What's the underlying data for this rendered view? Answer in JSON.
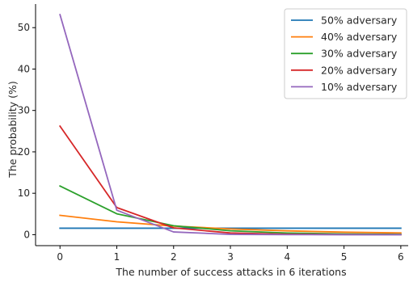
{
  "chart_data": {
    "type": "line",
    "title": "",
    "xlabel": "The number of success attacks in 6 iterations",
    "ylabel": "The probability (%)",
    "xlim": [
      -0.43,
      6.13
    ],
    "ylim": [
      -2.65,
      55.7
    ],
    "x": [
      0,
      1,
      2,
      3,
      4,
      5,
      6
    ],
    "xticks": [
      0,
      1,
      2,
      3,
      4,
      5,
      6
    ],
    "yticks": [
      0,
      10,
      20,
      30,
      40,
      50
    ],
    "grid": false,
    "legend_position": "top-right",
    "series": [
      {
        "name": "50% adversary",
        "color": "#1f77b4",
        "values": [
          1.56,
          1.56,
          1.56,
          1.56,
          1.56,
          1.56,
          1.56
        ]
      },
      {
        "name": "40% adversary",
        "color": "#ff7f0e",
        "values": [
          4.67,
          3.11,
          2.07,
          1.38,
          0.92,
          0.61,
          0.41
        ]
      },
      {
        "name": "30% adversary",
        "color": "#2ca02c",
        "values": [
          11.76,
          5.04,
          2.16,
          0.93,
          0.4,
          0.17,
          0.07
        ]
      },
      {
        "name": "20% adversary",
        "color": "#d62728",
        "values": [
          26.21,
          6.55,
          1.64,
          0.41,
          0.1,
          0.03,
          0.01
        ]
      },
      {
        "name": "10% adversary",
        "color": "#9467bd",
        "values": [
          53.14,
          5.9,
          0.66,
          0.07,
          0.01,
          0.0,
          0.0
        ]
      }
    ]
  }
}
